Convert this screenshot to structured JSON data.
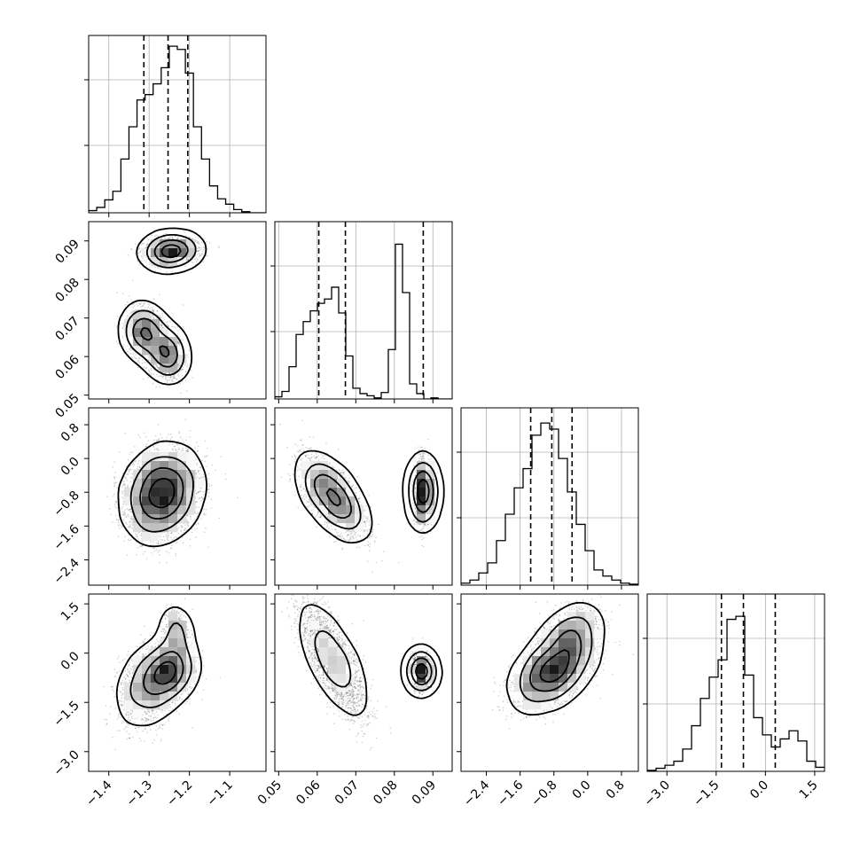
{
  "chart_data": {
    "type": "corner",
    "grid": true,
    "parameters": [
      {
        "range": [
          -1.45,
          -1.01
        ],
        "ticks": [
          -1.4,
          -1.3,
          -1.2,
          -1.1
        ],
        "tick_labels": [
          "−1.4",
          "−1.3",
          "−1.2",
          "−1.1"
        ],
        "quantiles": [
          -1.313,
          -1.253,
          -1.204
        ],
        "hist": {
          "start": -1.45,
          "step": 0.02,
          "counts": [
            0.2,
            0.5,
            1.2,
            2.0,
            5.0,
            8.0,
            10.5,
            11.0,
            12.0,
            13.5,
            15.5,
            15.2,
            13.0,
            8.0,
            5.0,
            2.5,
            1.3,
            0.8,
            0.3,
            0.1,
            0.0,
            0.0
          ],
          "ymax": 16.5
        }
      },
      {
        "range": [
          0.049,
          0.095
        ],
        "ticks": [
          0.05,
          0.06,
          0.07,
          0.08,
          0.09
        ],
        "tick_labels": [
          "0.05",
          "0.06",
          "0.07",
          "0.08",
          "0.09"
        ],
        "quantiles": [
          0.0604,
          0.0673,
          0.0875
        ],
        "hist": {
          "start": 0.049,
          "step": 0.00184,
          "counts": [
            0.2,
            0.7,
            3.0,
            6.0,
            7.2,
            8.2,
            8.9,
            9.3,
            10.4,
            8.0,
            4.0,
            1.0,
            0.5,
            0.3,
            0.1,
            0.6,
            4.6,
            14.4,
            9.9,
            1.4,
            0.5,
            0.0,
            0.1,
            0.0,
            0.0
          ],
          "ymax": 16.5
        }
      },
      {
        "range": [
          -3.0,
          1.2
        ],
        "ticks": [
          -2.4,
          -1.6,
          -0.8,
          0.0,
          0.8
        ],
        "tick_labels": [
          "−2.4",
          "−1.6",
          "−0.8",
          "0.0",
          "0.8"
        ],
        "quantiles": [
          -1.35,
          -0.85,
          -0.37
        ],
        "hist": {
          "start": -3.0,
          "step": 0.21,
          "counts": [
            0.2,
            0.5,
            1.2,
            2.2,
            4.4,
            7.0,
            9.6,
            11.5,
            14.8,
            16.0,
            15.4,
            12.5,
            9.2,
            6.0,
            3.4,
            1.5,
            0.9,
            0.5,
            0.2,
            0.1
          ],
          "ymax": 17.5
        }
      },
      {
        "range": [
          -3.6,
          1.8
        ],
        "ticks": [
          -3.0,
          -1.5,
          0.0,
          1.5
        ],
        "tick_labels": [
          "−3.0",
          "−1.5",
          "0.0",
          "1.5"
        ],
        "quantiles": [
          -1.34,
          -0.67,
          0.3
        ],
        "hist": {
          "start": -3.6,
          "step": 0.27,
          "counts": [
            0.1,
            0.3,
            0.6,
            1.0,
            2.2,
            4.5,
            7.2,
            9.3,
            11.0,
            15.0,
            15.3,
            9.5,
            5.3,
            3.6,
            2.4,
            3.2,
            4.0,
            3.0,
            1.0,
            0.4
          ],
          "ymax": 17.5
        }
      }
    ],
    "pairs": [
      {
        "row": 1,
        "col": 0,
        "components": [
          {
            "cx": -1.245,
            "cy": 0.0873,
            "sx": 0.033,
            "sy": 0.0016,
            "rho": 0.15,
            "n": 1500
          },
          {
            "cx": -1.318,
            "cy": 0.0668,
            "sx": 0.02,
            "sy": 0.003,
            "rho": 0.0,
            "n": 900
          },
          {
            "cx": -1.25,
            "cy": 0.0605,
            "sx": 0.018,
            "sy": 0.003,
            "rho": 0.0,
            "n": 800
          },
          {
            "cx": -1.285,
            "cy": 0.0635,
            "sx": 0.028,
            "sy": 0.004,
            "rho": -0.4,
            "n": 1000
          }
        ]
      },
      {
        "row": 2,
        "col": 0,
        "components": [
          {
            "cx": -1.26,
            "cy": -0.8,
            "sx": 0.042,
            "sy": 0.5,
            "rho": 0.15,
            "n": 3500
          },
          {
            "cx": -1.3,
            "cy": -1.0,
            "sx": 0.035,
            "sy": 0.5,
            "rho": 0.0,
            "n": 900
          }
        ]
      },
      {
        "row": 2,
        "col": 1,
        "components": [
          {
            "cx": 0.064,
            "cy": -0.9,
            "sx": 0.004,
            "sy": 0.45,
            "rho": -0.65,
            "n": 2500
          },
          {
            "cx": 0.0875,
            "cy": -0.8,
            "sx": 0.0011,
            "sy": 0.38,
            "rho": 0.0,
            "n": 1500
          }
        ]
      },
      {
        "row": 3,
        "col": 0,
        "components": [
          {
            "cx": -1.25,
            "cy": -0.5,
            "sx": 0.03,
            "sy": 0.4,
            "rho": 0.2,
            "n": 1500
          },
          {
            "cx": -1.235,
            "cy": 0.7,
            "sx": 0.015,
            "sy": 0.35,
            "rho": 0.0,
            "n": 400
          },
          {
            "cx": -1.295,
            "cy": -1.0,
            "sx": 0.04,
            "sy": 0.6,
            "rho": 0.3,
            "n": 1600
          }
        ]
      },
      {
        "row": 3,
        "col": 1,
        "components": [
          {
            "cx": 0.064,
            "cy": -0.2,
            "sx": 0.0042,
            "sy": 0.85,
            "rho": -0.75,
            "n": 2500
          },
          {
            "cx": 0.087,
            "cy": -0.55,
            "sx": 0.0011,
            "sy": 0.28,
            "rho": 0.0,
            "n": 1500
          }
        ]
      },
      {
        "row": 3,
        "col": 2,
        "components": [
          {
            "cx": -0.85,
            "cy": -0.6,
            "sx": 0.45,
            "sy": 0.5,
            "rho": 0.45,
            "n": 2800
          },
          {
            "cx": -0.4,
            "cy": 0.5,
            "sx": 0.35,
            "sy": 0.45,
            "rho": 0.3,
            "n": 1200
          }
        ]
      }
    ]
  }
}
